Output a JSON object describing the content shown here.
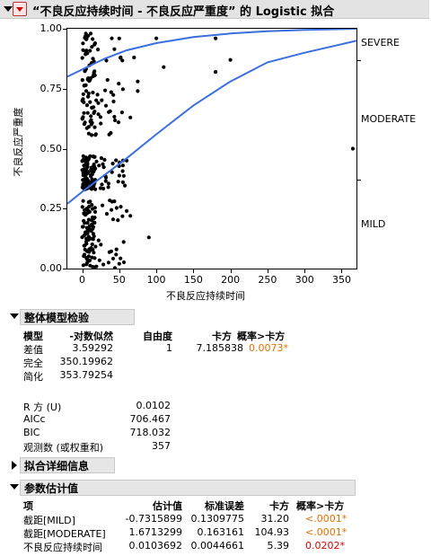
{
  "title": "“不良反应持续时间 - 不良反应严重度” 的 Logistic 拟合",
  "chart_data": {
    "type": "scatter",
    "xlabel": "不良反应持续时间",
    "ylabel": "不良反应严重度",
    "xlim": [
      -20,
      370
    ],
    "ylim": [
      0,
      1
    ],
    "x_ticks": [
      "0",
      "50",
      "100",
      "150",
      "200",
      "250",
      "300",
      "350"
    ],
    "y_ticks": [
      "0.00",
      "0.25",
      "0.50",
      "0.75",
      "1.00"
    ],
    "category_labels": [
      "SEVERE",
      "MODERATE",
      "MILD"
    ],
    "curves": [
      {
        "x": [
          -20,
          0,
          30,
          60,
          100,
          150,
          200,
          250,
          300,
          370
        ],
        "y": [
          0.8,
          0.83,
          0.875,
          0.91,
          0.94,
          0.965,
          0.98,
          0.99,
          0.995,
          1.0
        ]
      },
      {
        "x": [
          -20,
          0,
          30,
          60,
          100,
          150,
          200,
          250,
          300,
          370
        ],
        "y": [
          0.27,
          0.32,
          0.39,
          0.46,
          0.56,
          0.68,
          0.78,
          0.86,
          0.9,
          0.95
        ]
      }
    ],
    "points_extra": [
      {
        "x": 5,
        "y": 0.98
      },
      {
        "x": 40,
        "y": 0.96
      },
      {
        "x": 70,
        "y": 0.88
      },
      {
        "x": 100,
        "y": 0.96
      },
      {
        "x": 110,
        "y": 0.84
      },
      {
        "x": 180,
        "y": 0.96
      },
      {
        "x": 180,
        "y": 0.82
      },
      {
        "x": 200,
        "y": 0.87
      },
      {
        "x": 365,
        "y": 0.5
      },
      {
        "x": 90,
        "y": 0.13
      },
      {
        "x": 65,
        "y": 0.63
      },
      {
        "x": 75,
        "y": 0.78
      },
      {
        "x": 75,
        "y": 0.74
      },
      {
        "x": 55,
        "y": 0.43
      },
      {
        "x": 60,
        "y": 0.45
      },
      {
        "x": 60,
        "y": 0.24
      },
      {
        "x": 65,
        "y": 0.22
      },
      {
        "x": 55,
        "y": 0.36
      }
    ]
  },
  "overall": {
    "header": "整体模型检验",
    "columns": [
      "模型",
      "-对数似然",
      "自由度",
      "卡方",
      "概率>卡方"
    ],
    "rows": [
      [
        "差值",
        "3.59292",
        "1",
        "7.185838",
        "0.0073*"
      ],
      [
        "完全",
        "350.19962",
        "",
        "",
        ""
      ],
      [
        "简化",
        "353.79254",
        "",
        "",
        ""
      ]
    ]
  },
  "stats": [
    [
      "R 方 (U)",
      "0.0102"
    ],
    [
      "AICc",
      "706.467"
    ],
    [
      "BIC",
      "718.032"
    ],
    [
      "观测数 (或权重和)",
      "357"
    ]
  ],
  "fit_details": {
    "header": "拟合详细信息"
  },
  "params": {
    "header": "参数估计值",
    "columns": [
      "项",
      "估计值",
      "标准误差",
      "卡方",
      "概率>卡方"
    ],
    "rows": [
      [
        "截距[MILD]",
        "-0.7315899",
        "0.1309775",
        "31.20",
        "<.0001*"
      ],
      [
        "截距[MODERATE]",
        "1.6713299",
        "0.163161",
        "104.93",
        "<.0001*"
      ],
      [
        "不良反应持续时间",
        "0.0103692",
        "0.0044661",
        "5.39",
        "0.0202*"
      ]
    ]
  },
  "colors": {
    "curve": "#3a6fe0",
    "significant_orange": "#e07000",
    "significant_red": "#e00000"
  }
}
